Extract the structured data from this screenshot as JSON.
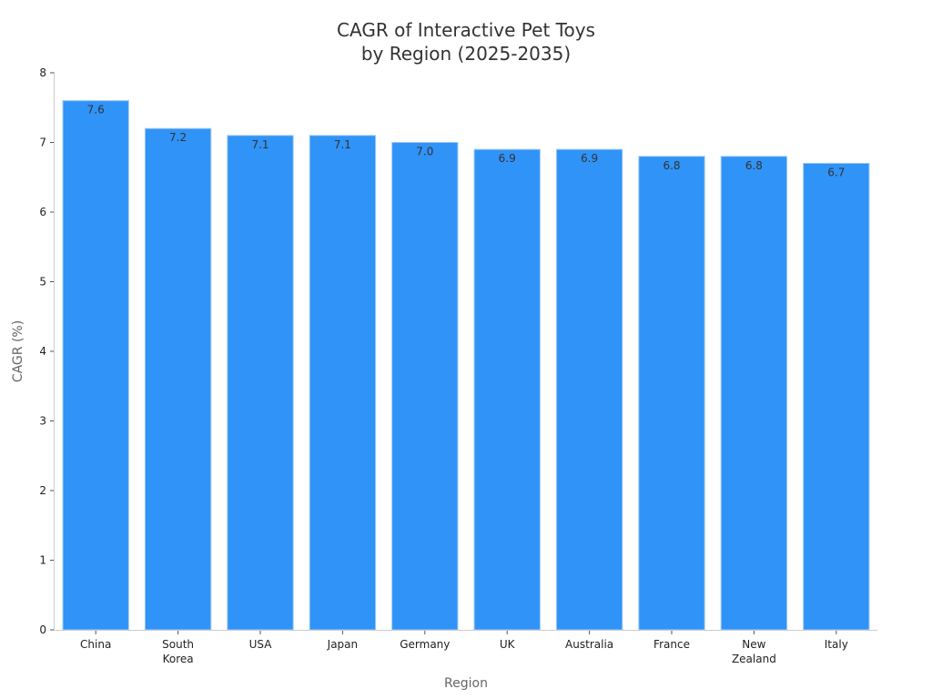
{
  "chart_data": {
    "type": "bar",
    "title": [
      "CAGR of Interactive Pet Toys",
      "by Region (2025-2035)"
    ],
    "xlabel": "Region",
    "ylabel": "CAGR (%)",
    "ylim": [
      0,
      8
    ],
    "yticks": [
      "0",
      "1",
      "2",
      "3",
      "4",
      "5",
      "6",
      "7",
      "8"
    ],
    "grid": false,
    "categories": [
      [
        "China"
      ],
      [
        "South",
        "Korea"
      ],
      [
        "USA"
      ],
      [
        "Japan"
      ],
      [
        "Germany"
      ],
      [
        "UK"
      ],
      [
        "Australia"
      ],
      [
        "France"
      ],
      [
        "New",
        "Zealand"
      ],
      [
        "Italy"
      ]
    ],
    "values": [
      7.6,
      7.2,
      7.1,
      7.1,
      7.0,
      6.9,
      6.9,
      6.8,
      6.8,
      6.7
    ],
    "value_labels": [
      "7.6",
      "7.2",
      "7.1",
      "7.1",
      "7.0",
      "6.9",
      "6.9",
      "6.8",
      "6.8",
      "6.7"
    ],
    "bar_color": "#3093f7",
    "bar_edge_color": "#9cc8f5"
  }
}
